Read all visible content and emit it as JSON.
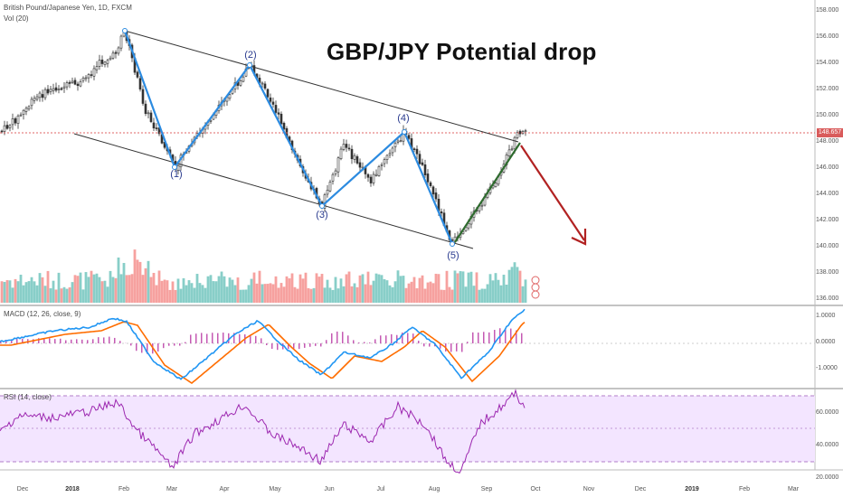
{
  "header": {
    "symbol_line": "British Pound/Japanese Yen, 1D, FXCM",
    "volume_label": "Vol (20)",
    "macd_label": "MACD (12, 26, close, 9)",
    "rsi_label": "RSI (14, close)"
  },
  "title": "GBP/JPY Potential drop",
  "wave_labels": [
    "(1)",
    "(2)",
    "(3)",
    "(4)",
    "(5)"
  ],
  "last_price": "148.657",
  "price_axis": [
    "158.000",
    "156.000",
    "154.000",
    "152.000",
    "150.000",
    "148.000",
    "146.000",
    "144.000",
    "142.000",
    "140.000",
    "138.000",
    "136.000"
  ],
  "macd_axis": [
    "1.0000",
    "0.0000",
    "-1.0000"
  ],
  "rsi_axis": [
    "60.0000",
    "40.0000",
    "20.0000"
  ],
  "time_axis": [
    "Dec",
    "2018",
    "Feb",
    "Mar",
    "Apr",
    "May",
    "Jun",
    "Jul",
    "Aug",
    "Sep",
    "Oct",
    "Nov",
    "Dec",
    "2019",
    "Feb",
    "Mar"
  ],
  "colors": {
    "bull": "#26a69a",
    "bear": "#ef5350",
    "candle": "#333333",
    "wave": "#2c8be0",
    "projection": "#b22222",
    "trend": "#2f6b2f",
    "macd_line": "#2196f3",
    "signal_line": "#ff6d00",
    "histogram": "#c45ab3",
    "rsi_line": "#9c27b0",
    "rsi_band": "#f3e5ff"
  }
}
